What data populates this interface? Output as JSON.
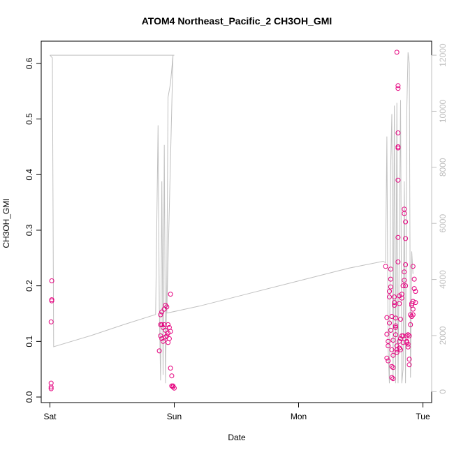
{
  "chart_data": {
    "type": "scatter",
    "title": "ATOM4 Northeast_Pacific_2 CH3OH_GMI",
    "xlabel": "Date",
    "ylabel": "CH3OH_GMI",
    "x_unit": "days since Saturday 00:00",
    "xlim": [
      -0.07,
      3.07
    ],
    "ylim": [
      -0.01,
      0.64
    ],
    "x_ticks": [
      {
        "value": 0,
        "label": "Sat"
      },
      {
        "value": 1,
        "label": "Sun"
      },
      {
        "value": 2,
        "label": "Mon"
      },
      {
        "value": 3,
        "label": "Tue"
      }
    ],
    "y_ticks": [
      {
        "value": 0.0,
        "label": "0.0"
      },
      {
        "value": 0.1,
        "label": "0.1"
      },
      {
        "value": 0.2,
        "label": "0.2"
      },
      {
        "value": 0.3,
        "label": "0.3"
      },
      {
        "value": 0.4,
        "label": "0.4"
      },
      {
        "value": 0.5,
        "label": "0.5"
      },
      {
        "value": 0.6,
        "label": "0.6"
      }
    ],
    "y2lim": [
      -390,
      12500
    ],
    "y2_ticks": [
      {
        "value": 0,
        "label": "0"
      },
      {
        "value": 2000,
        "label": "2000"
      },
      {
        "value": 4000,
        "label": "4000"
      },
      {
        "value": 6000,
        "label": "6000"
      },
      {
        "value": 8000,
        "label": "8000"
      },
      {
        "value": 10000,
        "label": "10000"
      },
      {
        "value": 12000,
        "label": "12000"
      }
    ],
    "grid": false,
    "legend": "none",
    "colors": {
      "points": "#e5007e",
      "altitude_line": "#c0c0c0",
      "axis": "#000000",
      "axis2": "#bfbfbf"
    },
    "series": [
      {
        "kind": "points",
        "axis": "left",
        "points": [
          [
            0.01,
            0.015
          ],
          [
            0.01,
            0.018
          ],
          [
            0.01,
            0.025
          ],
          [
            0.01,
            0.135
          ],
          [
            0.015,
            0.173
          ],
          [
            0.015,
            0.175
          ],
          [
            0.015,
            0.209
          ],
          [
            0.88,
            0.083
          ],
          [
            0.89,
            0.11
          ],
          [
            0.89,
            0.13
          ],
          [
            0.89,
            0.148
          ],
          [
            0.9,
            0.13
          ],
          [
            0.9,
            0.153
          ],
          [
            0.9,
            0.105
          ],
          [
            0.91,
            0.125
          ],
          [
            0.91,
            0.1
          ],
          [
            0.92,
            0.158
          ],
          [
            0.92,
            0.13
          ],
          [
            0.93,
            0.165
          ],
          [
            0.93,
            0.12
          ],
          [
            0.93,
            0.108
          ],
          [
            0.94,
            0.11
          ],
          [
            0.94,
            0.162
          ],
          [
            0.95,
            0.098
          ],
          [
            0.95,
            0.13
          ],
          [
            0.95,
            0.115
          ],
          [
            0.96,
            0.125
          ],
          [
            0.96,
            0.105
          ],
          [
            0.97,
            0.118
          ],
          [
            0.97,
            0.185
          ],
          [
            0.97,
            0.052
          ],
          [
            0.98,
            0.038
          ],
          [
            0.98,
            0.02
          ],
          [
            0.99,
            0.018
          ],
          [
            0.99,
            0.02
          ],
          [
            1.0,
            0.016
          ],
          [
            2.7,
            0.235
          ],
          [
            2.71,
            0.113
          ],
          [
            2.71,
            0.143
          ],
          [
            2.71,
            0.07
          ],
          [
            2.72,
            0.065
          ],
          [
            2.72,
            0.1
          ],
          [
            2.72,
            0.092
          ],
          [
            2.73,
            0.19
          ],
          [
            2.73,
            0.133
          ],
          [
            2.73,
            0.18
          ],
          [
            2.74,
            0.23
          ],
          [
            2.74,
            0.198
          ],
          [
            2.74,
            0.212
          ],
          [
            2.75,
            0.145
          ],
          [
            2.75,
            0.085
          ],
          [
            2.75,
            0.055
          ],
          [
            2.75,
            0.035
          ],
          [
            2.76,
            0.033
          ],
          [
            2.76,
            0.075
          ],
          [
            2.76,
            0.102
          ],
          [
            2.77,
            0.165
          ],
          [
            2.77,
            0.18
          ],
          [
            2.78,
            0.142
          ],
          [
            2.78,
            0.125
          ],
          [
            2.78,
            0.112
          ],
          [
            2.79,
            0.08
          ],
          [
            2.79,
            0.085
          ],
          [
            2.79,
            0.62
          ],
          [
            2.8,
            0.56
          ],
          [
            2.8,
            0.555
          ],
          [
            2.8,
            0.475
          ],
          [
            2.8,
            0.45
          ],
          [
            2.8,
            0.448
          ],
          [
            2.8,
            0.39
          ],
          [
            2.8,
            0.287
          ],
          [
            2.8,
            0.243
          ],
          [
            2.81,
            0.182
          ],
          [
            2.81,
            0.168
          ],
          [
            2.81,
            0.1
          ],
          [
            2.81,
            0.088
          ],
          [
            2.82,
            0.105
          ],
          [
            2.82,
            0.085
          ],
          [
            2.83,
            0.185
          ],
          [
            2.83,
            0.11
          ],
          [
            2.84,
            0.098
          ],
          [
            2.84,
            0.11
          ],
          [
            2.85,
            0.225
          ],
          [
            2.85,
            0.21
          ],
          [
            2.85,
            0.338
          ],
          [
            2.85,
            0.33
          ],
          [
            2.86,
            0.315
          ],
          [
            2.86,
            0.285
          ],
          [
            2.86,
            0.238
          ],
          [
            2.86,
            0.2
          ],
          [
            2.87,
            0.11
          ],
          [
            2.87,
            0.1
          ],
          [
            2.88,
            0.112
          ],
          [
            2.88,
            0.095
          ],
          [
            2.88,
            0.09
          ],
          [
            2.89,
            0.068
          ],
          [
            2.89,
            0.058
          ],
          [
            2.9,
            0.148
          ],
          [
            2.9,
            0.13
          ],
          [
            2.91,
            0.165
          ],
          [
            2.91,
            0.168
          ],
          [
            2.92,
            0.158
          ],
          [
            2.92,
            0.172
          ],
          [
            2.92,
            0.235
          ],
          [
            2.93,
            0.212
          ],
          [
            2.93,
            0.195
          ],
          [
            2.94,
            0.19
          ],
          [
            2.94,
            0.17
          ],
          [
            2.92,
            0.148
          ],
          [
            2.91,
            0.145
          ],
          [
            2.84,
            0.2
          ],
          [
            2.83,
            0.178
          ],
          [
            2.77,
            0.17
          ],
          [
            2.74,
            0.12
          ],
          [
            2.82,
            0.14
          ],
          [
            2.87,
            0.098
          ],
          [
            2.89,
            0.11
          ],
          [
            2.79,
            0.092
          ],
          [
            2.78,
            0.128
          ],
          [
            2.76,
            0.053
          ]
        ]
      },
      {
        "kind": "line",
        "axis": "right",
        "name": "",
        "points": [
          [
            0.0,
            12000
          ],
          [
            0.0,
            12000
          ],
          [
            0.02,
            11900
          ],
          [
            0.03,
            1600
          ],
          [
            0.33,
            2000
          ],
          [
            0.6,
            2400
          ],
          [
            0.85,
            2750
          ],
          [
            0.87,
            9500
          ],
          [
            0.88,
            3000
          ],
          [
            0.89,
            400
          ],
          [
            0.9,
            7500
          ],
          [
            0.91,
            600
          ],
          [
            0.92,
            8800
          ],
          [
            0.93,
            300
          ],
          [
            0.94,
            4000
          ],
          [
            0.95,
            10500
          ],
          [
            0.97,
            11000
          ],
          [
            0.99,
            12000
          ],
          [
            0.0,
            12000
          ],
          [
            1.0,
            12000
          ],
          [
            1.0,
            12000
          ],
          [
            0.99,
            12000
          ],
          [
            0.94,
            2800
          ],
          [
            1.2,
            3050
          ],
          [
            1.6,
            3500
          ],
          [
            2.0,
            3950
          ],
          [
            2.4,
            4400
          ],
          [
            2.68,
            4650
          ],
          [
            2.7,
            4600
          ],
          [
            2.71,
            9100
          ],
          [
            2.72,
            1500
          ],
          [
            2.73,
            300
          ],
          [
            2.74,
            8000
          ],
          [
            2.75,
            9900
          ],
          [
            2.76,
            400
          ],
          [
            2.77,
            10200
          ],
          [
            2.78,
            300
          ],
          [
            2.79,
            10300
          ],
          [
            2.8,
            300
          ],
          [
            2.82,
            10400
          ],
          [
            2.83,
            300
          ],
          [
            2.84,
            800
          ],
          [
            2.85,
            7500
          ],
          [
            2.86,
            300
          ],
          [
            2.87,
            10000
          ],
          [
            2.88,
            12100
          ],
          [
            2.89,
            11700
          ],
          [
            2.9,
            500
          ],
          [
            2.91,
            5000
          ],
          [
            2.92,
            4200
          ]
        ]
      }
    ]
  }
}
